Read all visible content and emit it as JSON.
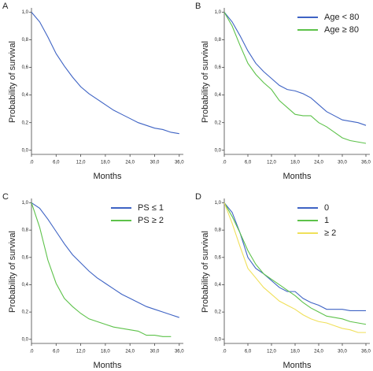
{
  "chart_data": [
    {
      "type": "line",
      "panel_label": "A",
      "xlabel": "Months",
      "ylabel": "Probability of survival",
      "x": [
        0,
        2,
        4,
        6,
        8,
        10,
        12,
        14,
        16,
        18,
        20,
        22,
        24,
        26,
        28,
        30,
        32,
        34,
        36
      ],
      "values": [
        1.0,
        0.93,
        0.82,
        0.7,
        0.61,
        0.53,
        0.46,
        0.41,
        0.37,
        0.33,
        0.29,
        0.26,
        0.23,
        0.2,
        0.18,
        0.16,
        0.15,
        0.13,
        0.12
      ],
      "color": "#3e63c4",
      "xlim": [
        0,
        37
      ],
      "ylim": [
        -0.03,
        1.02
      ],
      "xticks": [
        {
          "value": 0,
          "label": ".0"
        },
        {
          "value": 6,
          "label": "6,0"
        },
        {
          "value": 12,
          "label": "12,0"
        },
        {
          "value": 18,
          "label": "18,0"
        },
        {
          "value": 24,
          "label": "24,0"
        },
        {
          "value": 30,
          "label": "30,0"
        },
        {
          "value": 36,
          "label": "36,0"
        }
      ],
      "yticks": [
        {
          "value": 0,
          "label": "0,0"
        },
        {
          "value": 0.2,
          "label": "0,2"
        },
        {
          "value": 0.4,
          "label": "0,4"
        },
        {
          "value": 0.6,
          "label": "0,6"
        },
        {
          "value": 0.8,
          "label": "0,8"
        },
        {
          "value": 1,
          "label": "1,0"
        }
      ]
    },
    {
      "type": "line",
      "panel_label": "B",
      "xlabel": "Months",
      "ylabel": "Probability of survival",
      "x": [
        0,
        2,
        4,
        6,
        8,
        10,
        12,
        14,
        16,
        18,
        20,
        22,
        24,
        26,
        28,
        30,
        32,
        34,
        36
      ],
      "series": [
        {
          "name": "Age < 80",
          "color": "#3e63c4",
          "values": [
            1.0,
            0.93,
            0.83,
            0.72,
            0.63,
            0.57,
            0.52,
            0.47,
            0.44,
            0.43,
            0.41,
            0.38,
            0.33,
            0.28,
            0.25,
            0.22,
            0.21,
            0.2,
            0.18
          ]
        },
        {
          "name": "Age ≥ 80",
          "color": "#5dc24a",
          "values": [
            1.0,
            0.9,
            0.76,
            0.63,
            0.55,
            0.49,
            0.44,
            0.36,
            0.31,
            0.26,
            0.25,
            0.25,
            0.2,
            0.17,
            0.13,
            0.09,
            0.07,
            0.06,
            0.05
          ]
        }
      ],
      "xlim": [
        0,
        37
      ],
      "ylim": [
        -0.03,
        1.02
      ],
      "xticks": [
        {
          "value": 0,
          "label": ".0"
        },
        {
          "value": 6,
          "label": "6,0"
        },
        {
          "value": 12,
          "label": "12,0"
        },
        {
          "value": 18,
          "label": "18,0"
        },
        {
          "value": 24,
          "label": "24,0"
        },
        {
          "value": 30,
          "label": "30,0"
        },
        {
          "value": 36,
          "label": "36,0"
        }
      ],
      "yticks": [
        {
          "value": 0,
          "label": "0,0"
        },
        {
          "value": 0.2,
          "label": "0,2"
        },
        {
          "value": 0.4,
          "label": "0,4"
        },
        {
          "value": 0.6,
          "label": "0,6"
        },
        {
          "value": 0.8,
          "label": "0,8"
        },
        {
          "value": 1,
          "label": "1,0"
        }
      ]
    },
    {
      "type": "line",
      "panel_label": "C",
      "xlabel": "Months",
      "ylabel": "Probability of survival",
      "x": [
        0,
        2,
        4,
        6,
        8,
        10,
        12,
        14,
        16,
        18,
        20,
        22,
        24,
        26,
        28,
        30,
        32,
        34,
        36
      ],
      "series": [
        {
          "name": "PS ≤ 1",
          "color": "#3e63c4",
          "values": [
            1.0,
            0.96,
            0.88,
            0.79,
            0.7,
            0.62,
            0.56,
            0.5,
            0.45,
            0.41,
            0.37,
            0.33,
            0.3,
            0.27,
            0.24,
            0.22,
            0.2,
            0.18,
            0.16
          ]
        },
        {
          "name": "PS ≥ 2",
          "color": "#5dc24a",
          "values": [
            1.0,
            0.82,
            0.58,
            0.41,
            0.3,
            0.24,
            0.19,
            0.15,
            0.13,
            0.11,
            0.09,
            0.08,
            0.07,
            0.06,
            0.03,
            0.03,
            0.02,
            0.02,
            null
          ]
        }
      ],
      "xlim": [
        0,
        37
      ],
      "ylim": [
        -0.03,
        1.02
      ],
      "xticks": [
        {
          "value": 0,
          "label": ".0"
        },
        {
          "value": 6,
          "label": "6,0"
        },
        {
          "value": 12,
          "label": "12,0"
        },
        {
          "value": 18,
          "label": "18,0"
        },
        {
          "value": 24,
          "label": "24,0"
        },
        {
          "value": 30,
          "label": "30,0"
        },
        {
          "value": 36,
          "label": "36,0"
        }
      ],
      "yticks": [
        {
          "value": 0,
          "label": "0,0"
        },
        {
          "value": 0.2,
          "label": "0,2"
        },
        {
          "value": 0.4,
          "label": "0,4"
        },
        {
          "value": 0.6,
          "label": "0,6"
        },
        {
          "value": 0.8,
          "label": "0,8"
        },
        {
          "value": 1,
          "label": "1,0"
        }
      ]
    },
    {
      "type": "line",
      "panel_label": "D",
      "xlabel": "Months",
      "ylabel": "Probability of survival",
      "x": [
        0,
        2,
        4,
        6,
        8,
        10,
        12,
        14,
        16,
        18,
        20,
        22,
        24,
        26,
        28,
        30,
        32,
        34,
        36
      ],
      "series": [
        {
          "name": "0",
          "color": "#3e63c4",
          "values": [
            1.0,
            0.93,
            0.78,
            0.6,
            0.52,
            0.48,
            0.43,
            0.38,
            0.35,
            0.35,
            0.3,
            0.27,
            0.25,
            0.22,
            0.22,
            0.22,
            0.21,
            0.21,
            0.21
          ]
        },
        {
          "name": "1",
          "color": "#5dc24a",
          "values": [
            1.0,
            0.9,
            0.78,
            0.65,
            0.55,
            0.48,
            0.44,
            0.4,
            0.36,
            0.32,
            0.27,
            0.23,
            0.2,
            0.17,
            0.16,
            0.15,
            0.13,
            0.12,
            0.11
          ]
        },
        {
          "name": "≥ 2",
          "color": "#f0e05a",
          "values": [
            1.0,
            0.85,
            0.68,
            0.52,
            0.45,
            0.38,
            0.33,
            0.28,
            0.25,
            0.22,
            0.18,
            0.15,
            0.13,
            0.12,
            0.1,
            0.08,
            0.07,
            0.05,
            0.05
          ]
        }
      ],
      "xlim": [
        0,
        37
      ],
      "ylim": [
        -0.03,
        1.02
      ],
      "xticks": [
        {
          "value": 0,
          "label": ".0"
        },
        {
          "value": 6,
          "label": "6,0"
        },
        {
          "value": 12,
          "label": "12,0"
        },
        {
          "value": 18,
          "label": "18,0"
        },
        {
          "value": 24,
          "label": "24,0"
        },
        {
          "value": 30,
          "label": "30,0"
        },
        {
          "value": 36,
          "label": "36,0"
        }
      ],
      "yticks": [
        {
          "value": 0,
          "label": "0,0"
        },
        {
          "value": 0.2,
          "label": "0,2"
        },
        {
          "value": 0.4,
          "label": "0,4"
        },
        {
          "value": 0.6,
          "label": "0,6"
        },
        {
          "value": 0.8,
          "label": "0,8"
        },
        {
          "value": 1,
          "label": "1,0"
        }
      ]
    }
  ]
}
